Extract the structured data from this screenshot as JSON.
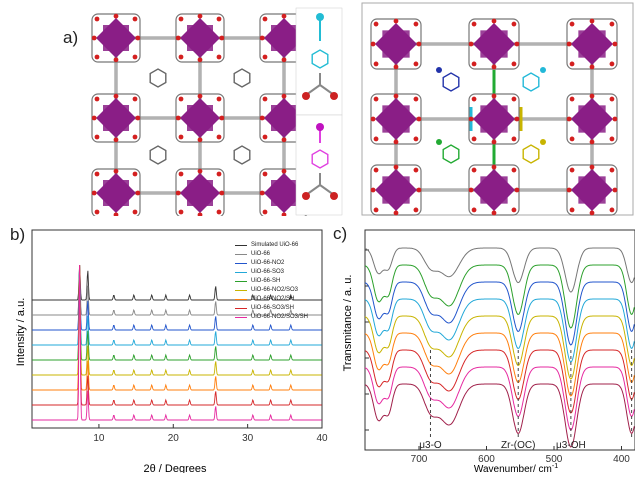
{
  "panel_labels": {
    "a": "a)",
    "b": "b)",
    "c": "c)"
  },
  "linkers": {
    "top": {
      "top_atom": "#22bcd4",
      "ring": "#22bcd4",
      "bottom_atom": "#cc2222"
    },
    "bottom": {
      "top_atom": "#c012c0",
      "ring": "#e040e0",
      "bottom_atom": "#cc2222"
    }
  },
  "framework_colors": {
    "cluster": "#8a1e86",
    "oxygen": "#d42020",
    "bond": "#888888"
  },
  "chart_data": [
    {
      "type": "line",
      "panel": "b",
      "xlabel": "2θ / Degrees",
      "ylabel": "Intensity / a.u.",
      "xlim": [
        1,
        40
      ],
      "xticks": [
        "10",
        "20",
        "30",
        "40"
      ],
      "legend_position": "top-right",
      "peak_positions_2theta": [
        7.4,
        8.5,
        12.0,
        14.7,
        17.1,
        19.0,
        22.2,
        25.7,
        30.7,
        33.1,
        35.8
      ],
      "series": [
        {
          "name": "Simulated UiO-66",
          "color": "#333333"
        },
        {
          "name": "UiO-66",
          "color": "#888888"
        },
        {
          "name": "UiO-66-NO2",
          "color": "#2255cc"
        },
        {
          "name": "UiO-66-SO3",
          "color": "#22a8d8"
        },
        {
          "name": "UiO-66-SH",
          "color": "#2ca02c"
        },
        {
          "name": "UiO-66-NO2/SO3",
          "color": "#c8b400"
        },
        {
          "name": "UiO-66-NO2/SH",
          "color": "#ff7f0e"
        },
        {
          "name": "UiO-66-SO3/SH",
          "color": "#d62728"
        },
        {
          "name": "UiO-66-NO2/SO3/SH",
          "color": "#e62aa0"
        }
      ]
    },
    {
      "type": "line",
      "panel": "c",
      "xlabel": "Wavenumber/ cm-1",
      "ylabel": "Transmitance / a. u.",
      "xlim": [
        780,
        380
      ],
      "xticks": [
        "700",
        "600",
        "500",
        "400"
      ],
      "annotations": [
        {
          "text": "μ3-O",
          "x": 683
        },
        {
          "text": "Zr-(OC)",
          "x": 553
        },
        {
          "text": "μ3-OH",
          "x": 475
        },
        {
          "x": 385
        }
      ],
      "series_colors": [
        "#777777",
        "#2ca02c",
        "#2255cc",
        "#22a8d8",
        "#c8b400",
        "#ff7f0e",
        "#d62728",
        "#e62aa0",
        "#a0204a"
      ]
    }
  ]
}
